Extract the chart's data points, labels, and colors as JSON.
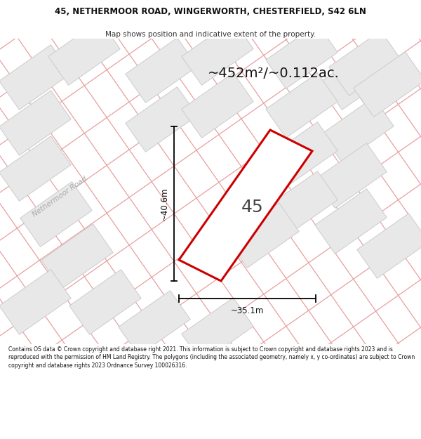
{
  "title_line1": "45, NETHERMOOR ROAD, WINGERWORTH, CHESTERFIELD, S42 6LN",
  "title_line2": "Map shows position and indicative extent of the property.",
  "area_text": "~452m²/~0.112ac.",
  "label_number": "45",
  "dim_vertical": "~40.6m",
  "dim_horizontal": "~35.1m",
  "road_label": "Nethermoor Road",
  "footer_text": "Contains OS data © Crown copyright and database right 2021. This information is subject to Crown copyright and database rights 2023 and is reproduced with the permission of HM Land Registry. The polygons (including the associated geometry, namely x, y co-ordinates) are subject to Crown copyright and database rights 2023 Ordnance Survey 100026316.",
  "map_bg": "#ffffff",
  "plot_color": "#cc0000",
  "road_line_color": "#e8a0a0",
  "block_fill": "#e8e8e8",
  "block_edge": "#cccccc"
}
